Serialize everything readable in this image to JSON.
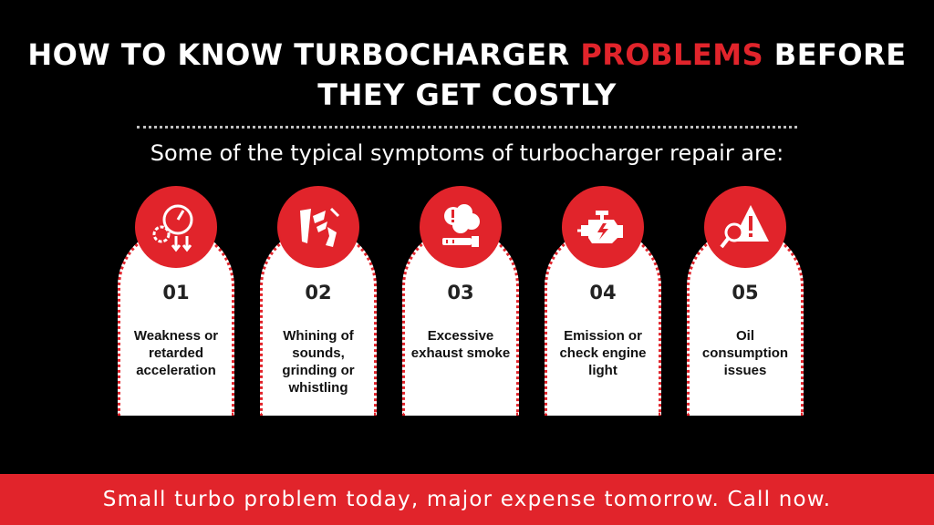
{
  "title": {
    "part1": "HOW TO KNOW TURBOCHARGER ",
    "highlight": "PROBLEMS",
    "part2": " BEFORE",
    "line2": "THEY GET COSTLY"
  },
  "subtitle": "Some of the typical symptoms of turbocharger repair are:",
  "symptoms": [
    {
      "number": "01",
      "label": "Weakness or retarded acceleration",
      "icon": "gauge-gears-icon"
    },
    {
      "number": "02",
      "label": "Whining of sounds, grinding or whistling",
      "icon": "noise-icon"
    },
    {
      "number": "03",
      "label": "Excessive exhaust smoke",
      "icon": "exhaust-smoke-icon"
    },
    {
      "number": "04",
      "label": "Emission or check engine light",
      "icon": "check-engine-icon"
    },
    {
      "number": "05",
      "label": "Oil consumption issues",
      "icon": "warning-inspect-icon"
    }
  ],
  "footer": "Small turbo problem today, major expense tomorrow. Call now.",
  "colors": {
    "accent": "#e1242b",
    "background": "#000000",
    "card": "#ffffff"
  }
}
